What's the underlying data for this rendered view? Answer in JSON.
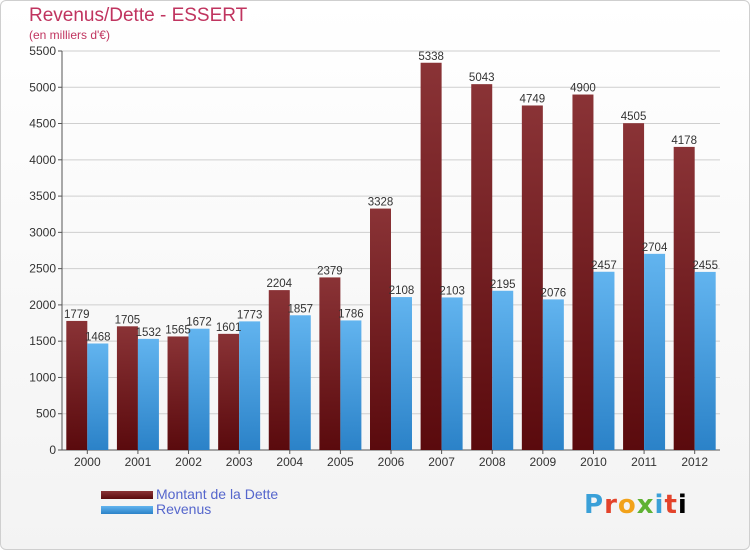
{
  "header": {
    "title": "Revenus/Dette - ESSERT",
    "subtitle": "(en milliers d'€)"
  },
  "legend": {
    "items": [
      {
        "label": "Montant de la Dette",
        "color": "#6b0f12"
      },
      {
        "label": "Revenus",
        "color": "#3c96d6"
      }
    ]
  },
  "logo": {
    "text": "Proxiti"
  },
  "colors": {
    "debt_dark": "#5a0a0d",
    "debt_light": "#8a3336",
    "revenue_dark": "#2b82c8",
    "revenue_light": "#62b4ef",
    "title": "#c0345f"
  },
  "chart_data": {
    "type": "bar",
    "categories": [
      "2000",
      "2001",
      "2002",
      "2003",
      "2004",
      "2005",
      "2006",
      "2007",
      "2008",
      "2009",
      "2010",
      "2011",
      "2012"
    ],
    "series": [
      {
        "name": "Montant de la Dette",
        "values": [
          1779,
          1705,
          1565,
          1601,
          2204,
          2379,
          3328,
          5338,
          5043,
          4749,
          4900,
          4505,
          4178
        ],
        "labels": [
          "1779",
          "1705",
          "1565",
          "1601",
          "2204",
          "2379",
          "3328",
          "5338",
          "5043",
          "4749",
          "4900",
          "4505",
          "4178"
        ]
      },
      {
        "name": "Revenus",
        "values": [
          1468,
          1532,
          1672,
          1773,
          1857,
          1786,
          2108,
          2103,
          2195,
          2076,
          2457,
          2704,
          2455
        ],
        "labels": [
          "1468",
          "1532",
          "1672",
          "1773",
          "1857",
          "1786",
          "2108",
          "2103",
          "2195",
          "2076",
          "2457",
          "2704",
          "2455"
        ]
      }
    ],
    "ylim": [
      0,
      5500
    ],
    "yticks": [
      "0",
      "500",
      "1000",
      "1500",
      "2000",
      "2500",
      "3000",
      "3500",
      "4000",
      "4500",
      "5000",
      "5500"
    ],
    "grid": true,
    "legend_position": "bottom-left"
  }
}
